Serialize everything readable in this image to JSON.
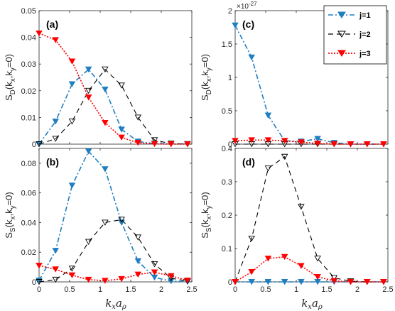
{
  "legend": {
    "entries": [
      "j=1",
      "j=2",
      "j=3"
    ],
    "position": "top-right (panel c)"
  },
  "series_styles": [
    {
      "color": "#1f7fc0",
      "dash": "7,3,2,3",
      "marker": "triangle-down",
      "fill": "#1f7fc0"
    },
    {
      "color": "#000000",
      "dash": "7,5",
      "marker": "triangle-down",
      "fill": "none"
    },
    {
      "color": "#ff0000",
      "dash": "2,2",
      "marker": "triangle-down",
      "fill": "#ff0000"
    }
  ],
  "chart_data": [
    {
      "panel": "a",
      "type": "line",
      "label": "(a)",
      "ylabel_main": "S",
      "ylabel_sub": "D",
      "ylabel_args": "(k",
      "ylabel_x": "x",
      "ylabel_mid": ",k",
      "ylabel_y": "y",
      "ylabel_end": "=0)",
      "xlim": [
        0,
        2.5
      ],
      "ylim": [
        0,
        0.05
      ],
      "yticks": [
        0,
        0.01,
        0.02,
        0.03,
        0.04,
        0.05
      ],
      "ytick_labels": [
        "0",
        "0.01",
        "0.02",
        "0.03",
        "0.04",
        "0.05"
      ],
      "xtick_labels": [],
      "exponent": "",
      "x": [
        0,
        0.27,
        0.54,
        0.81,
        1.08,
        1.35,
        1.62,
        1.89,
        2.16,
        2.43
      ],
      "series": [
        {
          "values": [
            0,
            0.0085,
            0.0225,
            0.028,
            0.0205,
            0.0055,
            0.001,
            0.0002,
            0.0001,
            0.0001
          ]
        },
        {
          "values": [
            0,
            0.002,
            0.0085,
            0.02,
            0.028,
            0.022,
            0.01,
            0.0015,
            0.0002,
            0
          ]
        },
        {
          "values": [
            0.0415,
            0.039,
            0.031,
            0.0175,
            0.008,
            0.0025,
            0.0005,
            0.0001,
            0,
            0
          ]
        }
      ]
    },
    {
      "panel": "b",
      "type": "line",
      "label": "(b)",
      "ylabel_main": "S",
      "ylabel_sub": "S",
      "ylabel_args": "(k",
      "ylabel_x": "x",
      "ylabel_mid": ",k",
      "ylabel_y": "y",
      "ylabel_end": "=0)",
      "xlim": [
        0,
        2.5
      ],
      "ylim": [
        0,
        0.09
      ],
      "yticks": [
        0,
        0.02,
        0.04,
        0.06,
        0.08
      ],
      "ytick_labels": [
        "0",
        "0.02",
        "0.04",
        "0.06",
        "0.08"
      ],
      "xtick_labels": [
        "0",
        "0.5",
        "1",
        "1.5",
        "2",
        "2.5"
      ],
      "exponent": "",
      "x": [
        0,
        0.27,
        0.54,
        0.81,
        1.08,
        1.35,
        1.62,
        1.89,
        2.16,
        2.43
      ],
      "series": [
        {
          "values": [
            0.001,
            0.021,
            0.065,
            0.088,
            0.076,
            0.04,
            0.014,
            0.003,
            0.0005,
            0.0001
          ]
        },
        {
          "values": [
            0,
            0.0015,
            0.009,
            0.027,
            0.04,
            0.042,
            0.03,
            0.012,
            0.0025,
            0.0005
          ]
        },
        {
          "values": [
            0.011,
            0.0085,
            0.0045,
            0.0015,
            0.0008,
            0.002,
            0.005,
            0.0065,
            0.004,
            0.001
          ]
        }
      ]
    },
    {
      "panel": "c",
      "type": "line",
      "label": "(c)",
      "ylabel_main": "S",
      "ylabel_sub": "D",
      "ylabel_args": "(k",
      "ylabel_x": "x",
      "ylabel_mid": ",k",
      "ylabel_y": "y",
      "ylabel_end": "=0)",
      "xlim": [
        0,
        2.5
      ],
      "ylim": [
        0,
        2
      ],
      "yticks": [
        0,
        0.5,
        1,
        1.5,
        2
      ],
      "ytick_labels": [
        "0",
        "0.5",
        "1",
        "1.5",
        "2"
      ],
      "xtick_labels": [],
      "exponent_base": "×10",
      "exponent_power": "-27",
      "x": [
        0,
        0.27,
        0.54,
        0.81,
        1.08,
        1.35,
        1.62,
        1.89,
        2.16,
        2.43
      ],
      "series": [
        {
          "values": [
            1.78,
            1.3,
            0.43,
            0.05,
            0.04,
            0.08,
            0.02,
            0,
            0,
            0
          ]
        },
        {
          "values": [
            0,
            0,
            0,
            0,
            0,
            0,
            0,
            0,
            0,
            0
          ]
        },
        {
          "values": [
            0.05,
            0.06,
            0.06,
            0.05,
            0.03,
            0.01,
            0,
            0,
            0,
            0
          ]
        }
      ]
    },
    {
      "panel": "d",
      "type": "line",
      "label": "(d)",
      "ylabel_main": "S",
      "ylabel_sub": "S",
      "ylabel_args": "(k",
      "ylabel_x": "x",
      "ylabel_mid": ",k",
      "ylabel_y": "y",
      "ylabel_end": "=0)",
      "xlim": [
        0,
        2.5
      ],
      "ylim": [
        0,
        0.4
      ],
      "yticks": [
        0,
        0.1,
        0.2,
        0.3,
        0.4
      ],
      "ytick_labels": [
        "0",
        "0.1",
        "0.2",
        "0.3",
        "0.4"
      ],
      "xtick_labels": [
        "0",
        "0.5",
        "1",
        "1.5",
        "2",
        "2.5"
      ],
      "exponent": "",
      "x": [
        0,
        0.27,
        0.54,
        0.81,
        1.08,
        1.35,
        1.62,
        1.89,
        2.16,
        2.43
      ],
      "series": [
        {
          "values": [
            0,
            0,
            0,
            0,
            0,
            0,
            0,
            0,
            0,
            0
          ]
        },
        {
          "values": [
            0,
            0.13,
            0.34,
            0.375,
            0.225,
            0.07,
            0.012,
            0.002,
            0,
            0
          ]
        },
        {
          "values": [
            0,
            0.03,
            0.07,
            0.075,
            0.048,
            0.015,
            0.003,
            0,
            0,
            0
          ]
        }
      ]
    }
  ],
  "xlabel": "k_x a_ρ",
  "xlabel_k": "k",
  "xlabel_x": "x",
  "xlabel_a": "a",
  "xlabel_rho": "ρ"
}
